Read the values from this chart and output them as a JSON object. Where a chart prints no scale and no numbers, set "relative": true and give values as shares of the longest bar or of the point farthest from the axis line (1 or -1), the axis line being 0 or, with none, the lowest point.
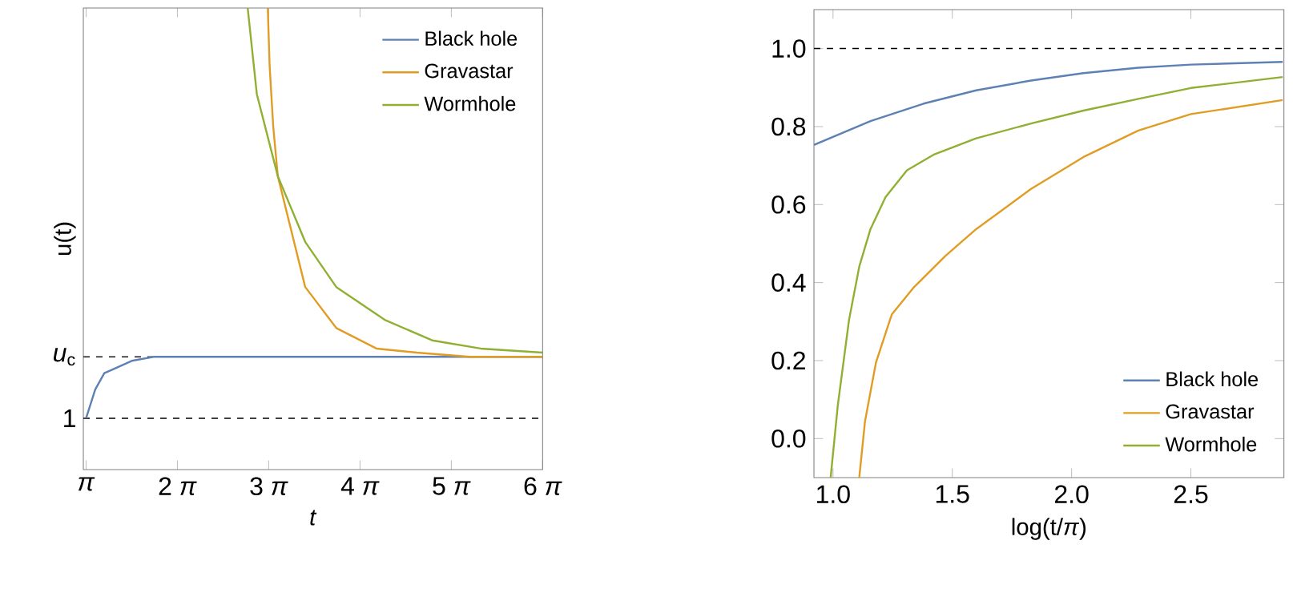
{
  "chart_data": [
    {
      "type": "line",
      "xlabel": "*t*",
      "ylabel": "u(t)",
      "xlim": [
        0.97,
        6
      ],
      "relative": true,
      "xticks": [
        {
          "value": 1,
          "label": "*π*"
        },
        {
          "value": 2,
          "label": "2 *π*"
        },
        {
          "value": 3,
          "label": "3 *π*"
        },
        {
          "value": 4,
          "label": "4 *π*"
        },
        {
          "value": 5,
          "label": "5 *π*"
        },
        {
          "value": 6,
          "label": "6 *π*"
        }
      ],
      "legend": "top right",
      "marker": "none",
      "ref_lines": [
        {
          "axis": "y",
          "value": 0,
          "color": "#000000",
          "line_style": "dashed"
        },
        {
          "axis": "y",
          "value": 0.15,
          "color": "#000000",
          "line_style": "dashed"
        }
      ],
      "annotations": [
        "1",
        "*u*$_{c}$"
      ],
      "series": [
        {
          "name": "Black hole",
          "color": "#5e81b5",
          "x": [
            1,
            1.1,
            1.2,
            1.3,
            1.5,
            1.75,
            2,
            2.5,
            6
          ],
          "values": [
            0,
            0.07,
            0.11,
            0.12,
            0.14,
            0.15,
            0.15,
            0.15,
            0.15
          ]
        },
        {
          "name": "Gravastar",
          "color": "#e19c24",
          "x": [
            2.99,
            3.01,
            3.05,
            3.1,
            3.4,
            3.74,
            4.18,
            4.62,
            5.2,
            6
          ],
          "values": [
            1,
            0.86,
            0.71,
            0.59,
            0.32,
            0.22,
            0.17,
            0.16,
            0.15,
            0.15
          ]
        },
        {
          "name": "Wormhole",
          "color": "#8fb032",
          "x": [
            2.77,
            2.87,
            3.1,
            3.4,
            3.74,
            4.27,
            4.79,
            5.32,
            6
          ],
          "values": [
            1,
            0.79,
            0.59,
            0.43,
            0.32,
            0.24,
            0.19,
            0.17,
            0.16
          ]
        }
      ]
    },
    {
      "type": "line",
      "xlabel": "log(t/*π*)",
      "xlim": [
        0.92,
        2.89
      ],
      "ylim": [
        -0.1,
        1.1
      ],
      "xticks": [
        {
          "value": 1,
          "label": "1.0"
        },
        {
          "value": 1.5,
          "label": "1.5"
        },
        {
          "value": 2,
          "label": "2.0"
        },
        {
          "value": 2.5,
          "label": "2.5"
        }
      ],
      "yticks": [
        {
          "value": 0,
          "label": "0.0"
        },
        {
          "value": 0.2,
          "label": "0.2"
        },
        {
          "value": 0.4,
          "label": "0.4"
        },
        {
          "value": 0.6,
          "label": "0.6"
        },
        {
          "value": 0.8,
          "label": "0.8"
        },
        {
          "value": 1,
          "label": "1.0"
        }
      ],
      "legend": "bottom right",
      "marker": "none",
      "ref_lines": [
        {
          "axis": "y",
          "value": 1,
          "color": "#000000",
          "line_style": "dashed"
        }
      ],
      "series": [
        {
          "name": "Black hole",
          "color": "#5e81b5",
          "x": [
            0.92,
            1.157,
            1.38,
            1.6,
            1.83,
            2.05,
            2.28,
            2.5,
            2.885
          ],
          "values": [
            0.753,
            0.814,
            0.859,
            0.893,
            0.918,
            0.937,
            0.951,
            0.959,
            0.966
          ]
        },
        {
          "name": "Gravastar",
          "color": "#e19c24",
          "x": [
            1.11,
            1.134,
            1.18,
            1.246,
            1.336,
            1.47,
            1.6,
            1.83,
            2.05,
            2.28,
            2.5,
            2.885
          ],
          "values": [
            -0.1,
            0.044,
            0.195,
            0.318,
            0.386,
            0.468,
            0.537,
            0.64,
            0.722,
            0.79,
            0.832,
            0.868
          ]
        },
        {
          "name": "Wormhole",
          "color": "#8fb032",
          "x": [
            0.99,
            1.02,
            1.067,
            1.11,
            1.157,
            1.22,
            1.31,
            1.425,
            1.6,
            1.83,
            2.05,
            2.28,
            2.5,
            2.885
          ],
          "values": [
            -0.1,
            0.085,
            0.304,
            0.441,
            0.537,
            0.619,
            0.688,
            0.729,
            0.77,
            0.808,
            0.841,
            0.871,
            0.899,
            0.927
          ]
        }
      ]
    }
  ]
}
